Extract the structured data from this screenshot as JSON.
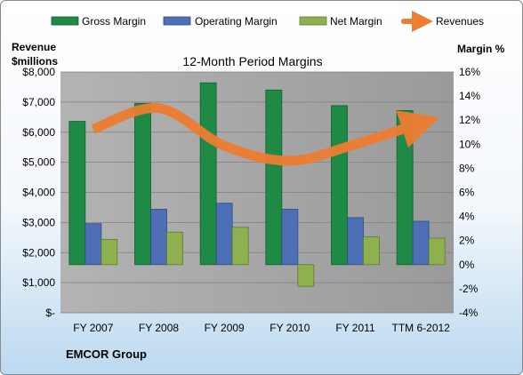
{
  "company": "EMCOR Group",
  "left_axis_title_line1": "Revenue",
  "left_axis_title_line2": "$millions",
  "right_axis_title": "Margin %",
  "colors": {
    "gross": "#1e8a45",
    "operating": "#4d6fb5",
    "net": "#8fb04e",
    "revenues": "#ed7d31",
    "plot_bg": "#a6a6a6"
  },
  "chart_data": {
    "type": "bar",
    "title": "12-Month Period Margins",
    "categories": [
      "FY 2007",
      "FY 2008",
      "FY 2009",
      "FY 2010",
      "FY 2011",
      "TTM 6-2012"
    ],
    "series": [
      {
        "name": "Gross Margin",
        "axis": "right",
        "values": [
          11.9,
          13.4,
          15.1,
          14.5,
          13.2,
          12.8
        ]
      },
      {
        "name": "Operating Margin",
        "axis": "right",
        "values": [
          3.4,
          4.6,
          5.1,
          4.6,
          3.9,
          3.6
        ]
      },
      {
        "name": "Net Margin",
        "axis": "right",
        "values": [
          2.1,
          2.7,
          3.1,
          -1.8,
          2.3,
          2.2
        ]
      },
      {
        "name": "Revenues",
        "axis": "left",
        "type": "line",
        "values": [
          6100,
          6800,
          5550,
          5050,
          5600,
          6300
        ]
      }
    ],
    "y_left": {
      "label": "Revenue $millions",
      "ylim": [
        0,
        8000
      ],
      "ticks": [
        "$-",
        "$1,000",
        "$2,000",
        "$3,000",
        "$4,000",
        "$5,000",
        "$6,000",
        "$7,000",
        "$8,000"
      ]
    },
    "y_right": {
      "label": "Margin %",
      "ylim": [
        -4,
        16
      ],
      "ticks": [
        "-4%",
        "-2%",
        "0%",
        "2%",
        "4%",
        "6%",
        "8%",
        "10%",
        "12%",
        "14%",
        "16%"
      ]
    },
    "grid": true,
    "legend": "top"
  }
}
